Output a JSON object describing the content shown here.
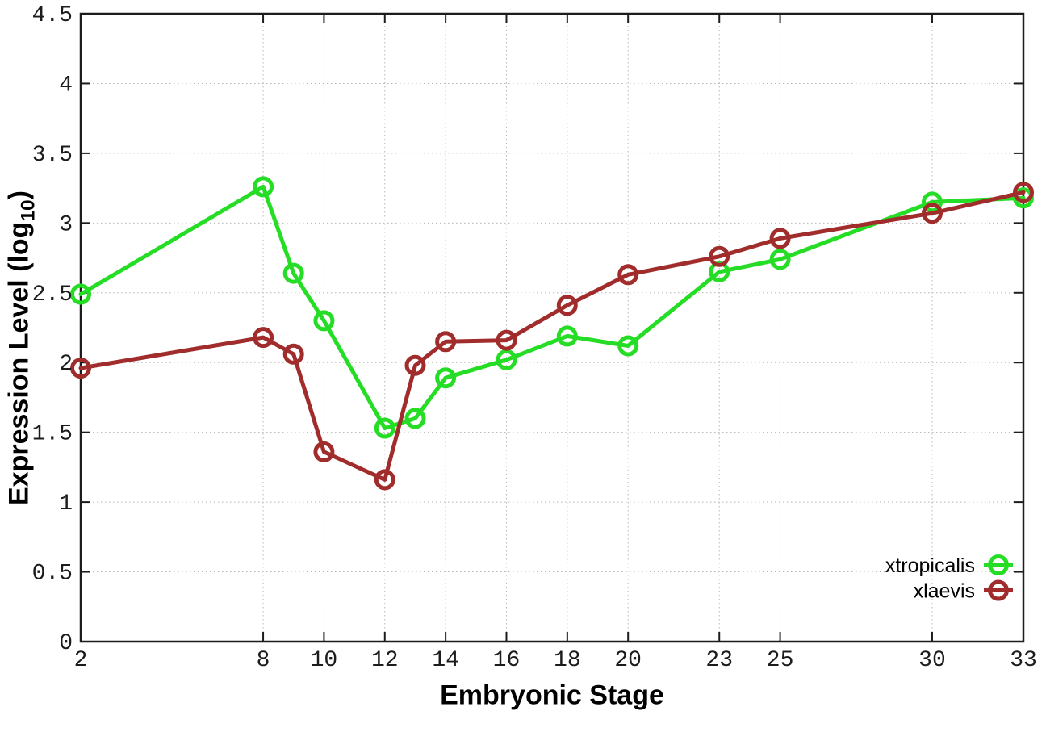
{
  "page": {
    "background": "#ffffff"
  },
  "chart_data": {
    "type": "line",
    "title": "",
    "xlabel": "Embryonic Stage",
    "ylabel": "Expression Level (log10)",
    "ylabel_parts": {
      "base": "Expression Level (log",
      "sub": "10",
      "suffix": ")"
    },
    "xlim": [
      2,
      33
    ],
    "ylim": [
      0,
      4.5
    ],
    "x_ticks": [
      2,
      8,
      10,
      12,
      14,
      16,
      18,
      20,
      23,
      25,
      30,
      33
    ],
    "y_ticks": [
      0,
      0.5,
      1,
      1.5,
      2,
      2.5,
      3,
      3.5,
      4,
      4.5
    ],
    "grid": true,
    "legend_position": "bottom-right",
    "x": [
      2,
      8,
      9,
      10,
      12,
      13,
      14,
      16,
      18,
      20,
      23,
      25,
      30,
      33
    ],
    "series": [
      {
        "name": "xtropicalis",
        "color": "#25dd25",
        "values": [
          2.49,
          3.26,
          2.64,
          2.3,
          1.53,
          1.6,
          1.89,
          2.02,
          2.19,
          2.12,
          2.65,
          2.74,
          3.15,
          3.18
        ]
      },
      {
        "name": "xlaevis",
        "color": "#a02c2c",
        "values": [
          1.96,
          2.18,
          2.06,
          1.36,
          1.16,
          1.98,
          2.15,
          2.16,
          2.41,
          2.63,
          2.76,
          2.89,
          3.07,
          3.22
        ]
      }
    ],
    "axis_color": "#1c1c1c",
    "grid_color": "#b5b5b5"
  }
}
